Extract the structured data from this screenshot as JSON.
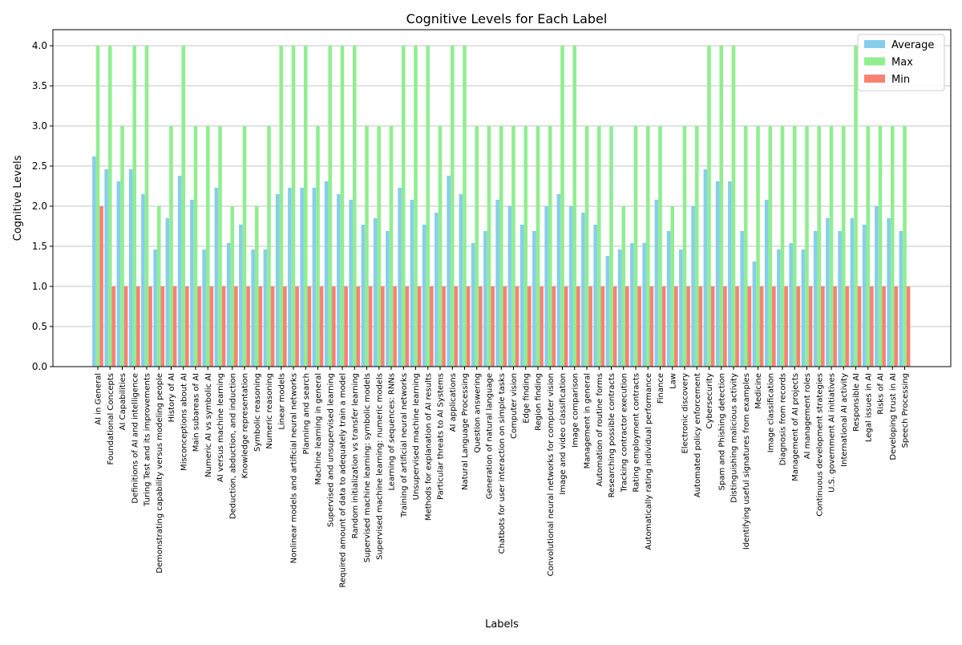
{
  "chart_data": {
    "type": "bar",
    "title": "Cognitive Levels for Each Label",
    "xlabel": "Labels",
    "ylabel": "Cognitive Levels",
    "ylim": [
      0,
      4.2
    ],
    "yticks": [
      "0.0",
      "0.5",
      "1.0",
      "1.5",
      "2.0",
      "2.5",
      "3.0",
      "3.5",
      "4.0"
    ],
    "grid": "y",
    "legend_position": "top-right",
    "categories": [
      "AI in General",
      "Foundational Concepts",
      "AI Capabilities",
      "Definitions of AI and intelligence",
      "Turing Test and its improvements",
      "Demonstrating capability versus modeling people",
      "History of AI",
      "Misconceptions about AI",
      "Main subareas of AI",
      "Numeric AI vs symbolic AI",
      "AI versus machine learning",
      "Deduction, abduction, and induction",
      "Knowledge representation",
      "Symbolic reasoning",
      "Numeric reasoning",
      "Linear models",
      "Nonlinear models and artificial neural networks",
      "Planning and search",
      "Machine learning in general",
      "Supervised and unsupervised learning",
      "Required amount of data to adequately train a model",
      "Random initialization vs transfer learning",
      "Supervised machine learning: symbolic models",
      "Supervised machine learning: numeric models",
      "Learning of sequences: RNNs",
      "Training of artificial neural networks",
      "Unsupervised machine learning",
      "Methods for explanation of AI results",
      "Particular threats to AI Systems",
      "AI applications",
      "Natural Language Processing",
      "Question answering",
      "Generation of natural language",
      "Chatbots for user interaction on simple tasks",
      "Computer vision",
      "Edge finding",
      "Region finding",
      "Convolutional neural networks for computer vision",
      "Image and video classification",
      "Image comparison",
      "Management in general",
      "Automation of routine forms",
      "Researching possible contracts",
      "Tracking contractor execution",
      "Rating employment contracts",
      "Automatically rating individual performance",
      "Finance",
      "Law",
      "Electronic discovery",
      "Automated policy enforcement",
      "Cybersecurity",
      "Spam and Phishing detection",
      "Distinguishing malicious activity",
      "Identifying useful signatures from examples",
      "Medicine",
      "Image classification",
      "Diagnosis from records",
      "Management of AI projects",
      "AI management roles",
      "Continuous development strategies",
      "U.S. government AI initiatives",
      "International AI activity",
      "Responsible AI",
      "Legal issues in AI",
      "Risks of AI",
      "Developing trust in AI",
      "Speech Processing"
    ],
    "series": [
      {
        "name": "Average",
        "color": "#87ceeb",
        "values": [
          2.62,
          2.46,
          2.31,
          2.46,
          2.15,
          1.46,
          1.85,
          2.38,
          2.08,
          1.46,
          2.23,
          1.54,
          1.77,
          1.46,
          1.46,
          2.15,
          2.23,
          2.23,
          2.23,
          2.31,
          2.15,
          2.08,
          1.77,
          1.85,
          1.69,
          2.23,
          2.08,
          1.77,
          1.92,
          2.38,
          2.15,
          1.54,
          1.69,
          2.08,
          2.0,
          1.77,
          1.69,
          2.0,
          2.15,
          2.0,
          1.92,
          1.77,
          1.38,
          1.46,
          1.54,
          1.54,
          2.08,
          1.69,
          1.46,
          2.0,
          2.46,
          2.31,
          2.31,
          1.69,
          1.31,
          2.08,
          1.46,
          1.54,
          1.46,
          1.69,
          1.85,
          1.69,
          1.85,
          1.77,
          2.0,
          1.85,
          1.69
        ]
      },
      {
        "name": "Max",
        "color": "#90ee90",
        "values": [
          4,
          4,
          3,
          4,
          4,
          2,
          3,
          4,
          3,
          3,
          3,
          2,
          3,
          2,
          3,
          4,
          4,
          4,
          3,
          4,
          4,
          4,
          3,
          3,
          3,
          4,
          4,
          4,
          3,
          4,
          4,
          3,
          3,
          3,
          3,
          3,
          3,
          3,
          4,
          4,
          3,
          3,
          3,
          2,
          3,
          3,
          3,
          2,
          3,
          3,
          4,
          4,
          4,
          3,
          3,
          3,
          3,
          3,
          3,
          3,
          3,
          3,
          4,
          3,
          3,
          3,
          3
        ]
      },
      {
        "name": "Min",
        "color": "#fa8072",
        "values": [
          2,
          1,
          1,
          1,
          1,
          1,
          1,
          1,
          1,
          1,
          1,
          1,
          1,
          1,
          1,
          1,
          1,
          1,
          1,
          1,
          1,
          1,
          1,
          1,
          1,
          1,
          1,
          1,
          1,
          1,
          1,
          1,
          1,
          1,
          1,
          1,
          1,
          1,
          1,
          1,
          1,
          1,
          1,
          1,
          1,
          1,
          1,
          1,
          1,
          1,
          1,
          1,
          1,
          1,
          1,
          1,
          1,
          1,
          1,
          1,
          1,
          1,
          1,
          1,
          1,
          1,
          1
        ]
      }
    ]
  }
}
